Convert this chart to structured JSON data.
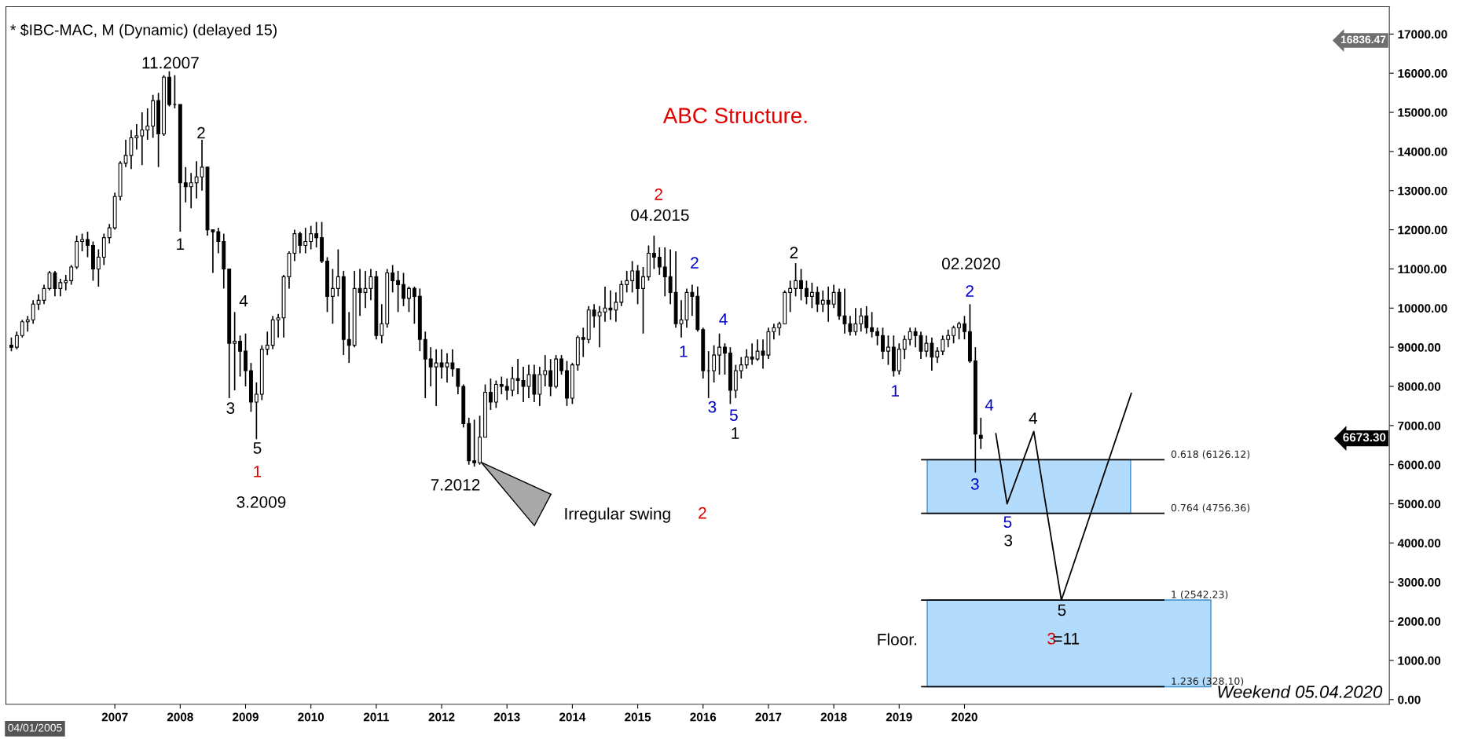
{
  "chart_data": {
    "type": "candlestick",
    "title": "* $IBC-MAC, M (Dynamic) (delayed 15)",
    "x": [
      "2005-06",
      "2005-07",
      "2005-08",
      "2005-09",
      "2005-10",
      "2005-11",
      "2005-12",
      "2006-01",
      "2006-02",
      "2006-03",
      "2006-04",
      "2006-05",
      "2006-06",
      "2006-07",
      "2006-08",
      "2006-09",
      "2006-10",
      "2006-11",
      "2006-12",
      "2007-01",
      "2007-02",
      "2007-03",
      "2007-04",
      "2007-05",
      "2007-06",
      "2007-07",
      "2007-08",
      "2007-09",
      "2007-10",
      "2007-11",
      "2007-12",
      "2008-01",
      "2008-02",
      "2008-03",
      "2008-04",
      "2008-05",
      "2008-06",
      "2008-07",
      "2008-08",
      "2008-09",
      "2008-10",
      "2008-11",
      "2008-12",
      "2009-01",
      "2009-02",
      "2009-03",
      "2009-04",
      "2009-05",
      "2009-06",
      "2009-07",
      "2009-08",
      "2009-09",
      "2009-10",
      "2009-11",
      "2009-12",
      "2010-01",
      "2010-02",
      "2010-03",
      "2010-04",
      "2010-05",
      "2010-06",
      "2010-07",
      "2010-08",
      "2010-09",
      "2010-10",
      "2010-11",
      "2010-12",
      "2011-01",
      "2011-02",
      "2011-03",
      "2011-04",
      "2011-05",
      "2011-06",
      "2011-07",
      "2011-08",
      "2011-09",
      "2011-10",
      "2011-11",
      "2011-12",
      "2012-01",
      "2012-02",
      "2012-03",
      "2012-04",
      "2012-05",
      "2012-06",
      "2012-07",
      "2012-08",
      "2012-09",
      "2012-10",
      "2012-11",
      "2012-12",
      "2013-01",
      "2013-02",
      "2013-03",
      "2013-04",
      "2013-05",
      "2013-06",
      "2013-07",
      "2013-08",
      "2013-09",
      "2013-10",
      "2013-11",
      "2013-12",
      "2014-01",
      "2014-02",
      "2014-03",
      "2014-04",
      "2014-05",
      "2014-06",
      "2014-07",
      "2014-08",
      "2014-09",
      "2014-10",
      "2014-11",
      "2014-12",
      "2015-01",
      "2015-02",
      "2015-03",
      "2015-04",
      "2015-05",
      "2015-06",
      "2015-07",
      "2015-08",
      "2015-09",
      "2015-10",
      "2015-11",
      "2015-12",
      "2016-01",
      "2016-02",
      "2016-03",
      "2016-04",
      "2016-05",
      "2016-06",
      "2016-07",
      "2016-08",
      "2016-09",
      "2016-10",
      "2016-11",
      "2016-12",
      "2017-01",
      "2017-02",
      "2017-03",
      "2017-04",
      "2017-05",
      "2017-06",
      "2017-07",
      "2017-08",
      "2017-09",
      "2017-10",
      "2017-11",
      "2017-12",
      "2018-01",
      "2018-02",
      "2018-03",
      "2018-04",
      "2018-05",
      "2018-06",
      "2018-07",
      "2018-08",
      "2018-09",
      "2018-10",
      "2018-11",
      "2018-12",
      "2019-01",
      "2019-02",
      "2019-03",
      "2019-04",
      "2019-05",
      "2019-06",
      "2019-07",
      "2019-08",
      "2019-09",
      "2019-10",
      "2019-11",
      "2019-12",
      "2020-01",
      "2020-02",
      "2020-03",
      "2020-04"
    ],
    "ohlc": [
      [
        9050,
        9250,
        8900,
        9000
      ],
      [
        9000,
        9400,
        8950,
        9300
      ],
      [
        9300,
        9700,
        9250,
        9650
      ],
      [
        9650,
        9800,
        9400,
        9700
      ],
      [
        9700,
        10200,
        9600,
        10100
      ],
      [
        10100,
        10350,
        9950,
        10200
      ],
      [
        10200,
        10600,
        10100,
        10500
      ],
      [
        10500,
        10950,
        10450,
        10900
      ],
      [
        10900,
        10950,
        10300,
        10500
      ],
      [
        10500,
        10750,
        10300,
        10650
      ],
      [
        10650,
        10850,
        10450,
        10700
      ],
      [
        10700,
        11100,
        10600,
        11050
      ],
      [
        11050,
        11850,
        11000,
        11700
      ],
      [
        11700,
        11900,
        11450,
        11750
      ],
      [
        11750,
        11950,
        11300,
        11600
      ],
      [
        11600,
        11700,
        10700,
        11000
      ],
      [
        11000,
        11500,
        10550,
        11300
      ],
      [
        11300,
        11900,
        11100,
        11800
      ],
      [
        11800,
        12150,
        11650,
        12050
      ],
      [
        12050,
        12950,
        12000,
        12850
      ],
      [
        12850,
        13750,
        12750,
        13700
      ],
      [
        13700,
        14300,
        13600,
        13900
      ],
      [
        13900,
        14550,
        13550,
        14350
      ],
      [
        14350,
        14700,
        14050,
        14400
      ],
      [
        14400,
        15000,
        13650,
        14550
      ],
      [
        14550,
        15100,
        14300,
        14650
      ],
      [
        14650,
        15450,
        14350,
        15300
      ],
      [
        15300,
        15500,
        13600,
        14450
      ],
      [
        14450,
        15950,
        14400,
        15900
      ],
      [
        15900,
        16050,
        15150,
        15200
      ],
      [
        15200,
        15950,
        15100,
        15200
      ],
      [
        15200,
        15200,
        11950,
        13200
      ],
      [
        13200,
        13600,
        12700,
        13100
      ],
      [
        13100,
        13450,
        12550,
        13200
      ],
      [
        13200,
        13750,
        12800,
        13350
      ],
      [
        13350,
        14300,
        13000,
        13600
      ],
      [
        13600,
        13600,
        11850,
        12000
      ],
      [
        12000,
        12000,
        10900,
        11950
      ],
      [
        11950,
        12050,
        11400,
        11700
      ],
      [
        11700,
        11900,
        10500,
        11000
      ],
      [
        11000,
        11000,
        7700,
        9100
      ],
      [
        9100,
        9900,
        7900,
        9150
      ],
      [
        9150,
        9300,
        8250,
        8900
      ],
      [
        8900,
        9350,
        8000,
        8400
      ],
      [
        8400,
        8600,
        7350,
        7600
      ],
      [
        7600,
        8100,
        6650,
        7800
      ],
      [
        7800,
        9050,
        7650,
        8950
      ],
      [
        8950,
        9400,
        8800,
        9050
      ],
      [
        9050,
        9800,
        8950,
        9700
      ],
      [
        9700,
        9850,
        9250,
        9750
      ],
      [
        9750,
        10850,
        9250,
        10800
      ],
      [
        10800,
        11450,
        10500,
        11400
      ],
      [
        11400,
        12000,
        11200,
        11900
      ],
      [
        11900,
        11950,
        11400,
        11600
      ],
      [
        11600,
        12050,
        11400,
        11700
      ],
      [
        11700,
        12100,
        11500,
        11900
      ],
      [
        11900,
        12200,
        11550,
        11800
      ],
      [
        11800,
        12200,
        11150,
        11200
      ],
      [
        11200,
        11300,
        9900,
        10300
      ],
      [
        10300,
        11000,
        9600,
        10500
      ],
      [
        10500,
        11500,
        10300,
        10800
      ],
      [
        10800,
        10950,
        8800,
        9200
      ],
      [
        9200,
        9900,
        8600,
        9050
      ],
      [
        9050,
        10950,
        9000,
        10500
      ],
      [
        10500,
        11000,
        9800,
        10400
      ],
      [
        10400,
        10950,
        10000,
        10500
      ],
      [
        10500,
        11000,
        10200,
        10800
      ],
      [
        10800,
        10950,
        9200,
        9300
      ],
      [
        9300,
        10100,
        9100,
        9600
      ],
      [
        9600,
        11000,
        9500,
        10900
      ],
      [
        10900,
        11100,
        10400,
        10700
      ],
      [
        10700,
        10950,
        9900,
        10600
      ],
      [
        10600,
        10900,
        10050,
        10250
      ],
      [
        10250,
        10550,
        9900,
        10500
      ],
      [
        10500,
        10550,
        9600,
        10300
      ],
      [
        10300,
        10500,
        8900,
        9200
      ],
      [
        9200,
        9400,
        7700,
        8700
      ],
      [
        8700,
        9000,
        8000,
        8500
      ],
      [
        8500,
        8950,
        7500,
        8600
      ],
      [
        8600,
        8950,
        8200,
        8500
      ],
      [
        8500,
        8850,
        8100,
        8600
      ],
      [
        8600,
        8950,
        8250,
        8450
      ],
      [
        8450,
        8450,
        7800,
        8000
      ],
      [
        8000,
        8050,
        6950,
        7050
      ],
      [
        7050,
        7200,
        6000,
        6100
      ],
      [
        6100,
        7150,
        5950,
        6050
      ],
      [
        6050,
        7250,
        6000,
        6700
      ],
      [
        6700,
        8050,
        6700,
        7850
      ],
      [
        7850,
        8200,
        7400,
        7600
      ],
      [
        7600,
        8150,
        7450,
        8050
      ],
      [
        8050,
        8250,
        7800,
        8000
      ],
      [
        8000,
        8200,
        7650,
        7900
      ],
      [
        7900,
        8500,
        7750,
        8200
      ],
      [
        8200,
        8700,
        7800,
        8150
      ],
      [
        8150,
        8500,
        7600,
        8000
      ],
      [
        8000,
        8550,
        7700,
        8300
      ],
      [
        8300,
        8550,
        7600,
        7800
      ],
      [
        7800,
        8500,
        7500,
        8300
      ],
      [
        8300,
        8800,
        8000,
        8400
      ],
      [
        8400,
        8700,
        7750,
        8000
      ],
      [
        8000,
        8800,
        7950,
        8700
      ],
      [
        8700,
        8800,
        8300,
        8400
      ],
      [
        8400,
        8650,
        7500,
        7700
      ],
      [
        7700,
        8600,
        7550,
        8550
      ],
      [
        8550,
        9300,
        8400,
        9250
      ],
      [
        9250,
        9500,
        8750,
        9200
      ],
      [
        9200,
        10050,
        9100,
        9950
      ],
      [
        9950,
        10100,
        9500,
        9800
      ],
      [
        9800,
        10050,
        9000,
        9900
      ],
      [
        9900,
        10550,
        9650,
        10000
      ],
      [
        10000,
        10450,
        9700,
        9950
      ],
      [
        9950,
        10400,
        9650,
        10150
      ],
      [
        10150,
        10700,
        10050,
        10600
      ],
      [
        10600,
        10950,
        10400,
        10700
      ],
      [
        10700,
        11200,
        10400,
        10950
      ],
      [
        10950,
        11100,
        10100,
        10500
      ],
      [
        10500,
        11050,
        9350,
        10800
      ],
      [
        10800,
        11600,
        10700,
        11400
      ],
      [
        11400,
        11850,
        11000,
        11300
      ],
      [
        11300,
        11550,
        10850,
        11050
      ],
      [
        11050,
        11550,
        10300,
        10800
      ],
      [
        10800,
        11500,
        10100,
        10400
      ],
      [
        10400,
        11450,
        9500,
        9600
      ],
      [
        9600,
        10200,
        9250,
        9700
      ],
      [
        9700,
        10500,
        9500,
        10400
      ],
      [
        10400,
        10600,
        9800,
        10300
      ],
      [
        10300,
        10550,
        9400,
        9450
      ],
      [
        9450,
        9500,
        8200,
        8400
      ],
      [
        8400,
        8900,
        7700,
        8400
      ],
      [
        8400,
        9050,
        8100,
        8800
      ],
      [
        8800,
        9350,
        8300,
        9000
      ],
      [
        9000,
        9100,
        8300,
        8850
      ],
      [
        8850,
        9000,
        7550,
        7900
      ],
      [
        7900,
        8550,
        7700,
        8400
      ],
      [
        8400,
        8750,
        8200,
        8550
      ],
      [
        8550,
        8950,
        8450,
        8750
      ],
      [
        8750,
        9100,
        8550,
        8700
      ],
      [
        8700,
        9200,
        8650,
        8900
      ],
      [
        8900,
        9200,
        8450,
        8800
      ],
      [
        8800,
        9500,
        8700,
        9400
      ],
      [
        9400,
        9600,
        9200,
        9500
      ],
      [
        9500,
        9650,
        9300,
        9600
      ],
      [
        9600,
        10450,
        9600,
        10400
      ],
      [
        10400,
        10700,
        9900,
        10500
      ],
      [
        10500,
        11150,
        10300,
        10700
      ],
      [
        10700,
        11000,
        10200,
        10500
      ],
      [
        10500,
        10700,
        10100,
        10300
      ],
      [
        10300,
        10650,
        10000,
        10400
      ],
      [
        10400,
        10550,
        9900,
        10100
      ],
      [
        10100,
        10450,
        9900,
        10200
      ],
      [
        10200,
        10550,
        9650,
        10100
      ],
      [
        10100,
        10600,
        10000,
        10400
      ],
      [
        10400,
        10500,
        9700,
        9800
      ],
      [
        9800,
        10500,
        9350,
        9600
      ],
      [
        9600,
        9800,
        9300,
        9400
      ],
      [
        9400,
        10000,
        9300,
        9600
      ],
      [
        9600,
        10000,
        9400,
        9800
      ],
      [
        9800,
        10050,
        9350,
        9500
      ],
      [
        9500,
        9900,
        9250,
        9400
      ],
      [
        9400,
        9500,
        9050,
        9300
      ],
      [
        9300,
        9500,
        8700,
        8900
      ],
      [
        8900,
        9300,
        8550,
        9000
      ],
      [
        9000,
        9300,
        8250,
        8400
      ],
      [
        8400,
        9100,
        8300,
        8950
      ],
      [
        8950,
        9300,
        8700,
        9200
      ],
      [
        9200,
        9500,
        9050,
        9400
      ],
      [
        9400,
        9500,
        9000,
        9300
      ],
      [
        9300,
        9400,
        8700,
        8900
      ],
      [
        8900,
        9300,
        8750,
        9100
      ],
      [
        9100,
        9250,
        8400,
        8750
      ],
      [
        8750,
        9000,
        8600,
        8900
      ],
      [
        8900,
        9300,
        8800,
        9200
      ],
      [
        9200,
        9450,
        9000,
        9300
      ],
      [
        9300,
        9550,
        9100,
        9500
      ],
      [
        9500,
        9650,
        9200,
        9600
      ],
      [
        9600,
        9800,
        9200,
        9400
      ],
      [
        9400,
        10100,
        8600,
        8650
      ],
      [
        8650,
        9000,
        5800,
        6780
      ],
      [
        6750,
        7200,
        6400,
        6673.3
      ]
    ],
    "series": [
      {
        "type": "line",
        "color": "#000000",
        "x": [
          "2020-06-24",
          "2020-08-26",
          "2021-01-23",
          "2021-06-25",
          "2022-07-20"
        ],
        "values": [
          6790,
          5000,
          6850,
          2540,
          7820
        ]
      }
    ],
    "xlim": [
      "2005-05",
      "2026-07"
    ],
    "xticks": [
      "2007",
      "2008",
      "2009",
      "2010",
      "2011",
      "2012",
      "2013",
      "2014",
      "2015",
      "2016",
      "2017",
      "2018",
      "2019",
      "2020"
    ],
    "ylim": [
      -120,
      17700
    ],
    "yticks": [
      {
        "value": 0,
        "label": "0.00"
      },
      {
        "value": 1000,
        "label": "1000.00"
      },
      {
        "value": 2000,
        "label": "2000.00"
      },
      {
        "value": 3000,
        "label": "3000.00"
      },
      {
        "value": 4000,
        "label": "4000.00"
      },
      {
        "value": 5000,
        "label": "5000.00"
      },
      {
        "value": 6000,
        "label": "6000.00"
      },
      {
        "value": 7000,
        "label": "7000.00"
      },
      {
        "value": 8000,
        "label": "8000.00"
      },
      {
        "value": 9000,
        "label": "9000.00"
      },
      {
        "value": 10000,
        "label": "10000.00"
      },
      {
        "value": 11000,
        "label": "11000.00"
      },
      {
        "value": 12000,
        "label": "12000.00"
      },
      {
        "value": 13000,
        "label": "13000.00"
      },
      {
        "value": 14000,
        "label": "14000.00"
      },
      {
        "value": 15000,
        "label": "15000.00"
      },
      {
        "value": 16000,
        "label": "16000.00"
      },
      {
        "value": 17000,
        "label": "17000.00"
      }
    ],
    "ref_lines": [
      {
        "axis": "y",
        "value": 6126.12,
        "label": "0.618 (6126.12)",
        "color": "#000000"
      },
      {
        "axis": "y",
        "value": 4756.36,
        "label": "0.764 (4756.36)",
        "color": "#000000"
      },
      {
        "axis": "y",
        "value": 2542.23,
        "label": "1 (2542.23)",
        "color": "#000000"
      },
      {
        "axis": "y",
        "value": 328.1,
        "label": "1.236 (328.10)",
        "color": "#000000"
      }
    ],
    "bands": [
      {
        "axis": "y",
        "from": 4756.36,
        "to": 6126.12,
        "color": "#b3dcfc"
      },
      {
        "axis": "y",
        "from": 328.1,
        "to": 2542.23,
        "color": "#b3dcfc"
      }
    ],
    "annotations": [
      "11.2007",
      "2",
      "1",
      "4",
      "3",
      "5",
      "1",
      "3.2009",
      "7.2012",
      "Irregular swing",
      "2",
      "ABC Structure.",
      "2",
      "04.2015",
      "2",
      "1",
      "4",
      "3",
      "5",
      "1",
      "2",
      "1",
      "02.2020",
      "2",
      "4",
      "3",
      "4",
      "5",
      "3",
      "5",
      "Floor.",
      "3",
      "=11",
      "16836.47",
      "6673.30",
      "Weekend 05.04.2020",
      "04/01/2005"
    ]
  }
}
